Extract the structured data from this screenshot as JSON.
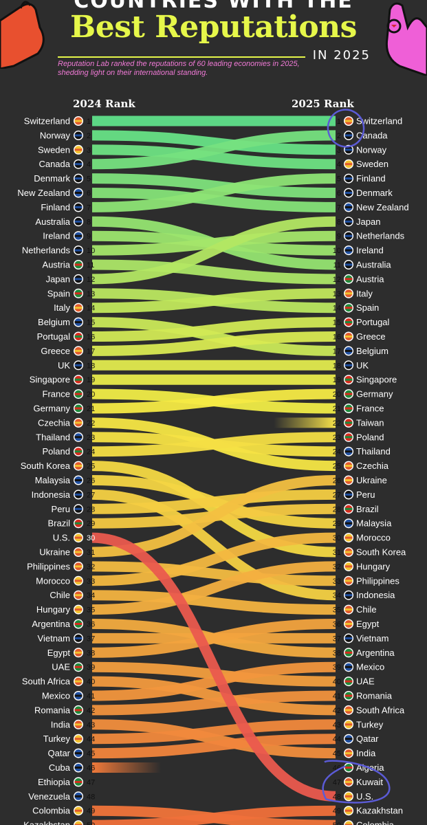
{
  "header": {
    "kicker": "Countries with the",
    "title": "Best Reputations",
    "year_label": "IN 2025",
    "subtitle": "Reputation Lab ranked the reputations of 60 leading economies in 2025, shedding light on their international standing.",
    "col_2024": "2024 Rank",
    "col_2025": "2025 Rank"
  },
  "chart_data": {
    "type": "slope",
    "x": [
      "2024 Rank",
      "2025 Rank"
    ],
    "rank_2024": [
      "Switzerland",
      "Norway",
      "Sweden",
      "Canada",
      "Denmark",
      "New Zealand",
      "Finland",
      "Australia",
      "Ireland",
      "Netherlands",
      "Austria",
      "Japan",
      "Spain",
      "Italy",
      "Belgium",
      "Portugal",
      "Greece",
      "UK",
      "Singapore",
      "France",
      "Germany",
      "Czechia",
      "Thailand",
      "Poland",
      "South Korea",
      "Malaysia",
      "Indonesia",
      "Peru",
      "Brazil",
      "U.S.",
      "Ukraine",
      "Philippines",
      "Morocco",
      "Chile",
      "Hungary",
      "Argentina",
      "Vietnam",
      "Egypt",
      "UAE",
      "South Africa",
      "Mexico",
      "Romania",
      "India",
      "Turkey",
      "Qatar",
      "Cuba",
      "Ethiopia",
      "Venezuela",
      "Colombia",
      "Kazakhstan"
    ],
    "rank_2025": [
      "Switzerland",
      "Canada",
      "Norway",
      "Sweden",
      "Finland",
      "Denmark",
      "New Zealand",
      "Japan",
      "Netherlands",
      "Ireland",
      "Australia",
      "Austria",
      "Italy",
      "Spain",
      "Portugal",
      "Greece",
      "Belgium",
      "UK",
      "Singapore",
      "Germany",
      "France",
      "Taiwan",
      "Poland",
      "Thailand",
      "Czechia",
      "Ukraine",
      "Peru",
      "Brazil",
      "Malaysia",
      "Morocco",
      "South Korea",
      "Hungary",
      "Philippines",
      "Indonesia",
      "Chile",
      "Egypt",
      "Vietnam",
      "Argentina",
      "Mexico",
      "UAE",
      "Romania",
      "South Africa",
      "Turkey",
      "Qatar",
      "India",
      "Algeria",
      "Kuwait",
      "U.S.",
      "Kazakhstan",
      "Colombia"
    ],
    "highlighted": [
      "Switzerland",
      "Canada",
      "Kuwait",
      "U.S."
    ]
  },
  "colors": {
    "background": "#2d2d2d",
    "gradient_top": "#5fe08a",
    "gradient_mid": "#f5ec45",
    "gradient_bottom": "#f0703a",
    "us_line": "#ea5a4e",
    "highlight_circle": "#5b5bd6",
    "title": "#e6f74a",
    "subtitle": "#f07ad6"
  }
}
